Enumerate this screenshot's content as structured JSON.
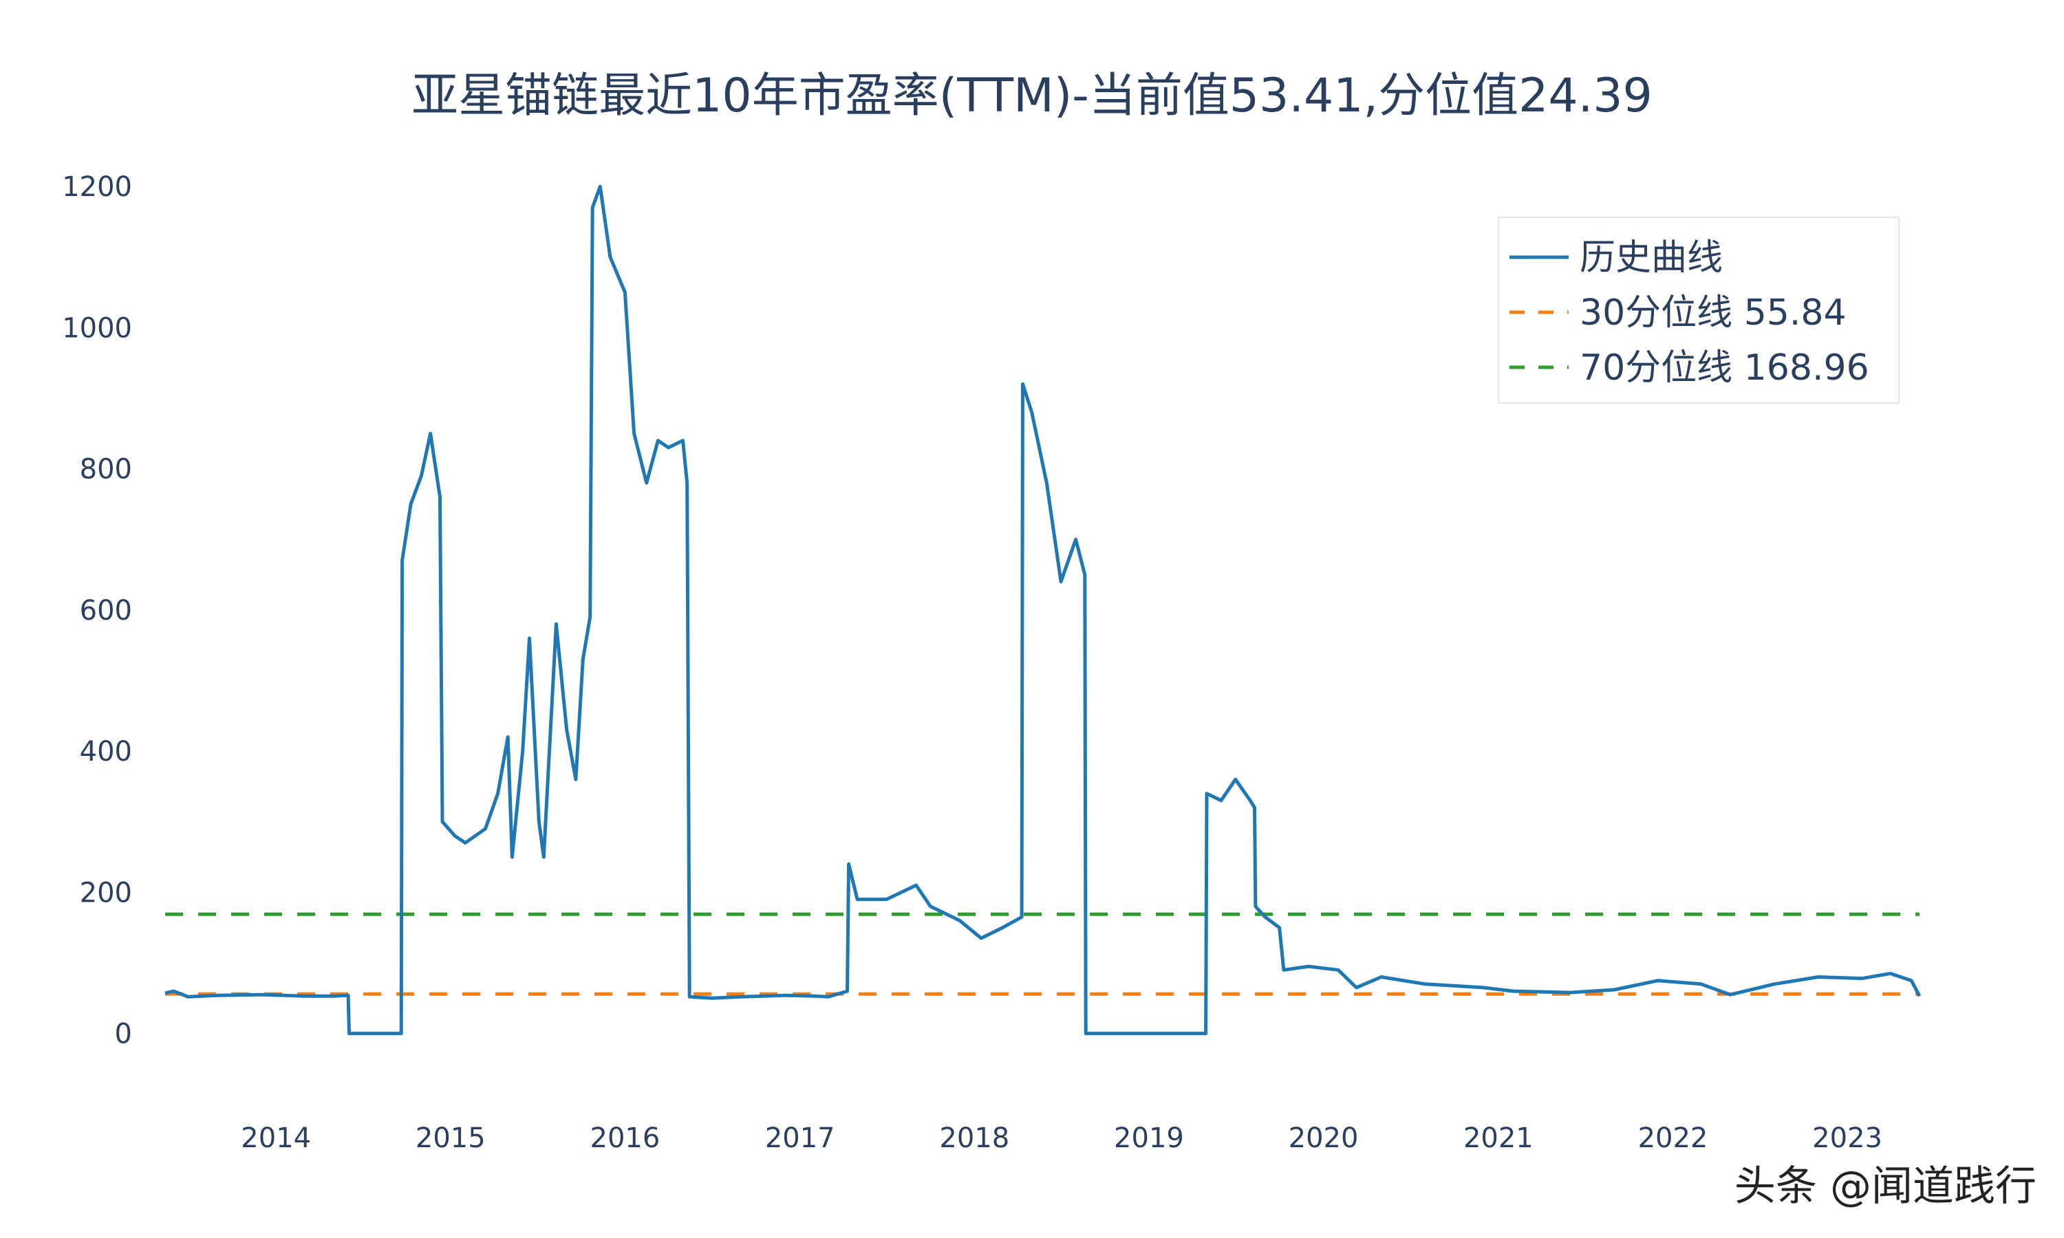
{
  "colors": {
    "history": "#1f77b4",
    "p30": "#ff7f0e",
    "p70": "#2ca02c",
    "text": "#2a3f5f",
    "legend_border": "#e6e6e6"
  },
  "watermark": "头条 @闻道践行",
  "chart_data": {
    "type": "line",
    "title": "亚星锚链最近10年市盈率(TTM)-当前值53.41,分位值24.39",
    "xlabel": "",
    "ylabel": "",
    "ylim": [
      -90,
      1240
    ],
    "xlim": [
      "2013-05-14",
      "2023-06-01"
    ],
    "y_ticks": [
      0,
      200,
      400,
      600,
      800,
      1000,
      1200
    ],
    "x_ticks": [
      "2014",
      "2015",
      "2016",
      "2017",
      "2018",
      "2019",
      "2020",
      "2021",
      "2022",
      "2023"
    ],
    "grid": false,
    "legend_position": "top-right",
    "series": [
      {
        "name": "历史曲线",
        "style": "solid",
        "points": [
          [
            "2013-05-14",
            57
          ],
          [
            "2013-06-01",
            60
          ],
          [
            "2013-07-01",
            52
          ],
          [
            "2013-09-01",
            54
          ],
          [
            "2013-12-01",
            55
          ],
          [
            "2014-03-01",
            53
          ],
          [
            "2014-05-01",
            53
          ],
          [
            "2014-06-01",
            54
          ],
          [
            "2014-06-03",
            0
          ],
          [
            "2014-09-20",
            0
          ],
          [
            "2014-09-22",
            670
          ],
          [
            "2014-10-10",
            750
          ],
          [
            "2014-11-01",
            790
          ],
          [
            "2014-11-20",
            850
          ],
          [
            "2014-12-10",
            760
          ],
          [
            "2014-12-15",
            300
          ],
          [
            "2015-01-10",
            280
          ],
          [
            "2015-02-01",
            270
          ],
          [
            "2015-03-15",
            290
          ],
          [
            "2015-04-10",
            340
          ],
          [
            "2015-05-01",
            420
          ],
          [
            "2015-05-10",
            250
          ],
          [
            "2015-06-01",
            400
          ],
          [
            "2015-06-15",
            560
          ],
          [
            "2015-07-05",
            300
          ],
          [
            "2015-07-15",
            250
          ],
          [
            "2015-08-10",
            580
          ],
          [
            "2015-09-01",
            430
          ],
          [
            "2015-09-20",
            360
          ],
          [
            "2015-10-05",
            530
          ],
          [
            "2015-10-20",
            590
          ],
          [
            "2015-10-25",
            1170
          ],
          [
            "2015-11-10",
            1200
          ],
          [
            "2015-12-01",
            1100
          ],
          [
            "2016-01-01",
            1050
          ],
          [
            "2016-01-20",
            850
          ],
          [
            "2016-02-15",
            780
          ],
          [
            "2016-03-10",
            840
          ],
          [
            "2016-04-01",
            830
          ],
          [
            "2016-05-01",
            840
          ],
          [
            "2016-05-10",
            780
          ],
          [
            "2016-05-15",
            52
          ],
          [
            "2016-07-01",
            50
          ],
          [
            "2016-09-01",
            52
          ],
          [
            "2016-12-01",
            54
          ],
          [
            "2017-02-01",
            53
          ],
          [
            "2017-03-01",
            52
          ],
          [
            "2017-04-10",
            60
          ],
          [
            "2017-04-13",
            240
          ],
          [
            "2017-05-01",
            190
          ],
          [
            "2017-07-01",
            190
          ],
          [
            "2017-09-01",
            210
          ],
          [
            "2017-10-01",
            180
          ],
          [
            "2017-12-01",
            160
          ],
          [
            "2018-01-15",
            135
          ],
          [
            "2018-03-01",
            150
          ],
          [
            "2018-04-10",
            165
          ],
          [
            "2018-04-12",
            920
          ],
          [
            "2018-05-01",
            880
          ],
          [
            "2018-06-01",
            780
          ],
          [
            "2018-07-01",
            640
          ],
          [
            "2018-08-01",
            700
          ],
          [
            "2018-08-20",
            650
          ],
          [
            "2018-08-22",
            0
          ],
          [
            "2019-04-30",
            0
          ],
          [
            "2019-05-02",
            340
          ],
          [
            "2019-06-01",
            330
          ],
          [
            "2019-07-01",
            360
          ],
          [
            "2019-08-01",
            330
          ],
          [
            "2019-08-10",
            320
          ],
          [
            "2019-08-12",
            180
          ],
          [
            "2019-09-01",
            165
          ],
          [
            "2019-10-01",
            150
          ],
          [
            "2019-10-10",
            90
          ],
          [
            "2019-12-01",
            95
          ],
          [
            "2020-02-01",
            90
          ],
          [
            "2020-03-10",
            65
          ],
          [
            "2020-05-01",
            80
          ],
          [
            "2020-08-01",
            70
          ],
          [
            "2020-12-01",
            65
          ],
          [
            "2021-02-01",
            60
          ],
          [
            "2021-06-01",
            58
          ],
          [
            "2021-09-01",
            62
          ],
          [
            "2021-12-01",
            75
          ],
          [
            "2022-03-01",
            70
          ],
          [
            "2022-05-01",
            55
          ],
          [
            "2022-08-01",
            70
          ],
          [
            "2022-11-01",
            80
          ],
          [
            "2023-02-01",
            78
          ],
          [
            "2023-04-01",
            85
          ],
          [
            "2023-05-15",
            75
          ],
          [
            "2023-06-01",
            53
          ]
        ]
      },
      {
        "name": "30分位线 55.84",
        "style": "dashed",
        "points": [
          [
            "2013-05-14",
            55.84
          ],
          [
            "2023-06-01",
            55.84
          ]
        ]
      },
      {
        "name": "70分位线 168.96",
        "style": "dashed",
        "points": [
          [
            "2013-05-14",
            168.96
          ],
          [
            "2023-06-01",
            168.96
          ]
        ]
      }
    ]
  }
}
